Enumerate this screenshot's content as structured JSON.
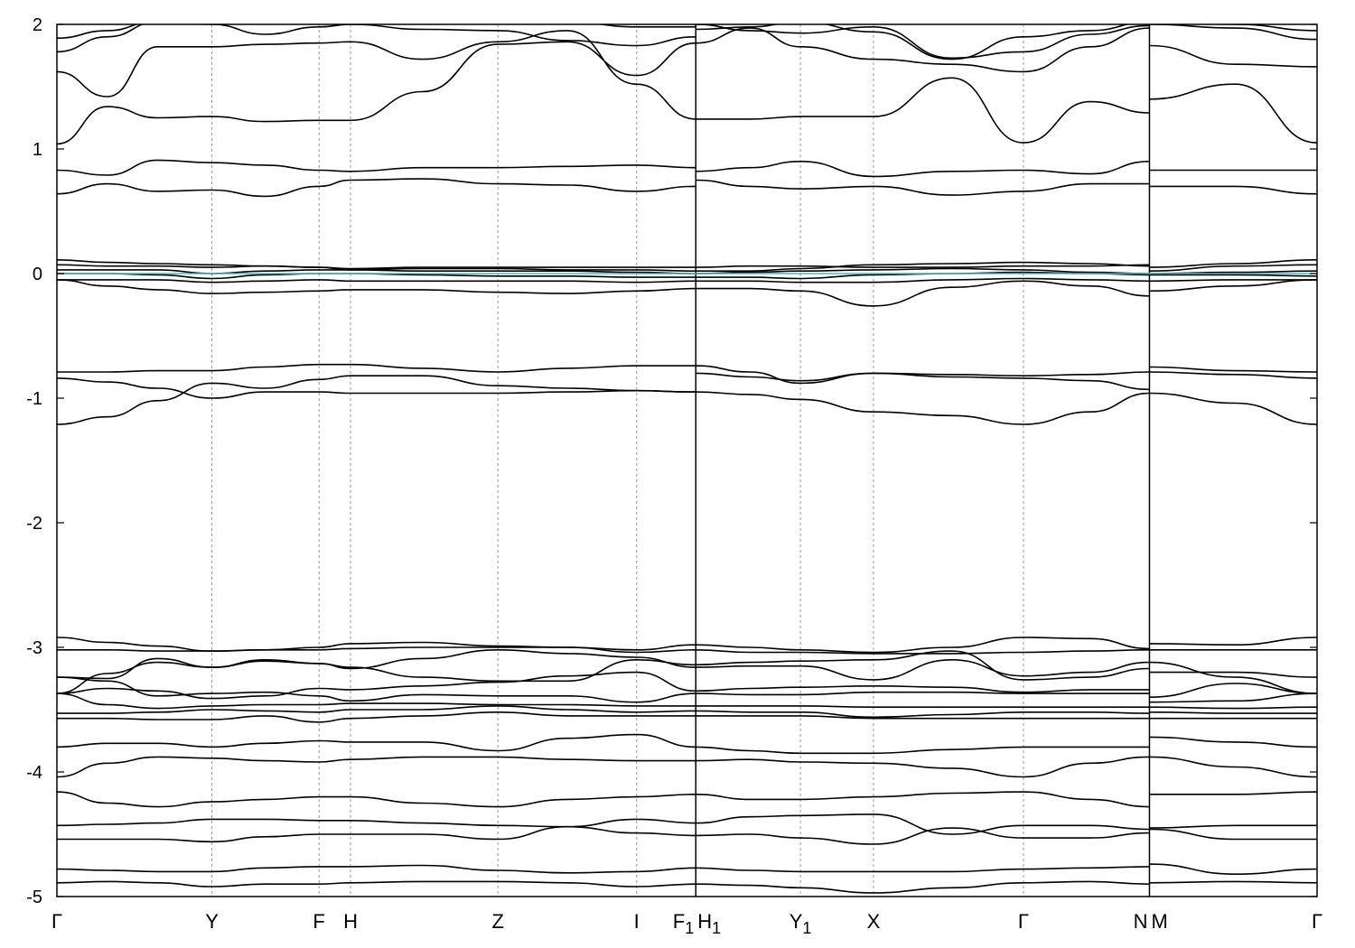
{
  "chart_data": {
    "type": "line",
    "title": "",
    "xlabel": "",
    "ylabel": "",
    "ylim": [
      -5,
      2
    ],
    "yticks": [
      2,
      1,
      0,
      -1,
      -2,
      -3,
      -4,
      -5
    ],
    "xlim": [
      0,
      10
    ],
    "grid": "vertical dashed lines at high-symmetry points",
    "legend": "none",
    "colors": {
      "bands": "#000000",
      "fermi": "#4ab6c6",
      "grid": "#9a9a9a"
    },
    "kpoints": [
      {
        "label": "Γ",
        "sub": "",
        "x": 0.0
      },
      {
        "label": "Y",
        "sub": "",
        "x": 1.23
      },
      {
        "label": "F",
        "sub": "",
        "x": 2.08
      },
      {
        "label": "H",
        "sub": "",
        "x": 2.33
      },
      {
        "label": "Z",
        "sub": "",
        "x": 3.5
      },
      {
        "label": "I",
        "sub": "",
        "x": 4.6
      },
      {
        "label": "F",
        "sub": "1",
        "x": 5.07
      },
      {
        "label": "H",
        "sub": "1",
        "x": 5.07
      },
      {
        "label": "Y",
        "sub": "1",
        "x": 5.9
      },
      {
        "label": "X",
        "sub": "",
        "x": 6.48
      },
      {
        "label": "Γ",
        "sub": "",
        "x": 7.67
      },
      {
        "label": "N",
        "sub": "",
        "x": 8.67
      },
      {
        "label": "M",
        "sub": "",
        "x": 8.67
      },
      {
        "label": "Γ",
        "sub": "",
        "x": 10.0
      }
    ],
    "x": [
      0,
      0.4,
      0.8,
      1.23,
      1.65,
      2.08,
      2.33,
      2.9,
      3.5,
      4.05,
      4.6,
      5.07,
      5.07,
      5.5,
      5.9,
      6.48,
      7.1,
      7.67,
      8.2,
      8.67,
      8.67,
      9.35,
      10.0
    ],
    "series": [
      {
        "values": [
          -4.89,
          -4.88,
          -4.89,
          -4.92,
          -4.9,
          -4.9,
          -4.89,
          -4.88,
          -4.88,
          -4.89,
          -4.92,
          -4.9,
          -4.9,
          -4.91,
          -4.93,
          -4.97,
          -4.93,
          -4.89,
          -4.88,
          -4.9,
          -4.89,
          -4.88,
          -4.89
        ]
      },
      {
        "values": [
          -4.78,
          -4.79,
          -4.8,
          -4.8,
          -4.77,
          -4.76,
          -4.76,
          -4.75,
          -4.79,
          -4.81,
          -4.8,
          -4.77,
          -4.77,
          -4.79,
          -4.8,
          -4.8,
          -4.8,
          -4.78,
          -4.77,
          -4.76,
          -4.74,
          -4.82,
          -4.78
        ]
      },
      {
        "values": [
          -4.54,
          -4.54,
          -4.54,
          -4.56,
          -4.52,
          -4.5,
          -4.5,
          -4.5,
          -4.54,
          -4.44,
          -4.38,
          -4.41,
          -4.41,
          -4.36,
          -4.35,
          -4.34,
          -4.5,
          -4.43,
          -4.43,
          -4.46,
          -4.46,
          -4.54,
          -4.54
        ]
      },
      {
        "values": [
          -4.43,
          -4.42,
          -4.41,
          -4.38,
          -4.38,
          -4.39,
          -4.39,
          -4.41,
          -4.43,
          -4.44,
          -4.49,
          -4.51,
          -4.51,
          -4.5,
          -4.53,
          -4.58,
          -4.45,
          -4.53,
          -4.53,
          -4.49,
          -4.45,
          -4.43,
          -4.43
        ]
      },
      {
        "values": [
          -4.16,
          -4.25,
          -4.28,
          -4.24,
          -4.22,
          -4.2,
          -4.2,
          -4.25,
          -4.28,
          -4.22,
          -4.2,
          -4.18,
          -4.18,
          -4.22,
          -4.22,
          -4.2,
          -4.17,
          -4.16,
          -4.22,
          -4.28,
          -4.18,
          -4.18,
          -4.16
        ]
      },
      {
        "values": [
          -4.04,
          -3.93,
          -3.88,
          -3.89,
          -3.91,
          -3.92,
          -3.9,
          -3.88,
          -3.88,
          -3.9,
          -3.91,
          -3.91,
          -3.91,
          -3.9,
          -3.92,
          -3.93,
          -3.97,
          -4.04,
          -3.93,
          -3.88,
          -3.88,
          -3.96,
          -4.04
        ]
      },
      {
        "values": [
          -3.8,
          -3.77,
          -3.77,
          -3.8,
          -3.77,
          -3.75,
          -3.76,
          -3.76,
          -3.83,
          -3.73,
          -3.7,
          -3.8,
          -3.8,
          -3.83,
          -3.85,
          -3.85,
          -3.82,
          -3.8,
          -3.8,
          -3.8,
          -3.72,
          -3.76,
          -3.8
        ]
      },
      {
        "values": [
          -3.57,
          -3.57,
          -3.58,
          -3.58,
          -3.55,
          -3.6,
          -3.57,
          -3.55,
          -3.52,
          -3.55,
          -3.55,
          -3.55,
          -3.55,
          -3.55,
          -3.55,
          -3.57,
          -3.57,
          -3.57,
          -3.57,
          -3.57,
          -3.57,
          -3.57,
          -3.57
        ]
      },
      {
        "values": [
          -3.53,
          -3.53,
          -3.52,
          -3.5,
          -3.51,
          -3.52,
          -3.5,
          -3.5,
          -3.47,
          -3.5,
          -3.52,
          -3.51,
          -3.51,
          -3.52,
          -3.52,
          -3.56,
          -3.54,
          -3.52,
          -3.52,
          -3.53,
          -3.52,
          -3.53,
          -3.53
        ]
      },
      {
        "values": [
          -3.37,
          -3.46,
          -3.49,
          -3.47,
          -3.46,
          -3.46,
          -3.45,
          -3.45,
          -3.46,
          -3.46,
          -3.47,
          -3.47,
          -3.47,
          -3.47,
          -3.47,
          -3.48,
          -3.48,
          -3.48,
          -3.48,
          -3.48,
          -3.48,
          -3.49,
          -3.48
        ]
      },
      {
        "values": [
          -3.37,
          -3.33,
          -3.35,
          -3.41,
          -3.39,
          -3.33,
          -3.34,
          -3.31,
          -3.28,
          -3.23,
          -3.2,
          -3.35,
          -3.35,
          -3.33,
          -3.32,
          -3.31,
          -3.32,
          -3.36,
          -3.34,
          -3.34,
          -3.4,
          -3.29,
          -3.37
        ]
      },
      {
        "values": [
          -3.24,
          -3.27,
          -3.39,
          -3.37,
          -3.36,
          -3.39,
          -3.43,
          -3.38,
          -3.39,
          -3.39,
          -3.44,
          -3.37,
          -3.37,
          -3.38,
          -3.38,
          -3.36,
          -3.36,
          -3.37,
          -3.37,
          -3.37,
          -3.44,
          -3.43,
          -3.37
        ]
      },
      {
        "values": [
          -3.37,
          -3.21,
          -3.12,
          -3.16,
          -3.1,
          -3.13,
          -3.17,
          -3.09,
          -3.02,
          -3.05,
          -3.08,
          -3.16,
          -3.16,
          -3.15,
          -3.15,
          -3.26,
          -3.1,
          -3.23,
          -3.2,
          -3.12,
          -3.12,
          -3.24,
          -3.37
        ]
      },
      {
        "values": [
          -3.24,
          -3.25,
          -3.09,
          -3.16,
          -3.11,
          -3.13,
          -3.16,
          -3.24,
          -3.27,
          -3.27,
          -3.1,
          -3.14,
          -3.14,
          -3.12,
          -3.11,
          -3.1,
          -3.03,
          -3.26,
          -3.24,
          -3.17,
          -3.2,
          -3.2,
          -3.24
        ]
      },
      {
        "values": [
          -3.02,
          -3.02,
          -3.03,
          -3.03,
          -3.02,
          -3.02,
          -3.01,
          -3.0,
          -3.0,
          -3.0,
          -3.04,
          -3.02,
          -3.02,
          -3.04,
          -3.04,
          -3.05,
          -3.05,
          -3.04,
          -3.03,
          -3.02,
          -3.02,
          -3.02,
          -3.02
        ]
      },
      {
        "values": [
          -2.92,
          -2.96,
          -2.99,
          -3.03,
          -3.02,
          -3.0,
          -2.97,
          -2.96,
          -2.99,
          -3.0,
          -3.02,
          -2.98,
          -2.98,
          -3.0,
          -3.02,
          -3.04,
          -3.0,
          -2.92,
          -2.93,
          -3.01,
          -2.97,
          -2.98,
          -2.92
        ]
      },
      {
        "values": [
          -1.21,
          -1.15,
          -1.02,
          -0.88,
          -0.92,
          -0.85,
          -0.82,
          -0.82,
          -0.9,
          -0.92,
          -0.94,
          -0.95,
          -0.95,
          -0.97,
          -1.01,
          -1.11,
          -1.14,
          -1.21,
          -1.11,
          -0.96,
          -0.96,
          -1.04,
          -1.21
        ]
      },
      {
        "values": [
          -0.84,
          -0.87,
          -0.92,
          -1.0,
          -0.95,
          -0.95,
          -0.96,
          -0.96,
          -0.96,
          -0.95,
          -0.94,
          -0.95,
          -0.8,
          -0.83,
          -0.86,
          -0.8,
          -0.83,
          -0.84,
          -0.86,
          -0.93,
          -0.79,
          -0.81,
          -0.84
        ]
      },
      {
        "values": [
          -0.79,
          -0.79,
          -0.78,
          -0.78,
          -0.75,
          -0.73,
          -0.73,
          -0.76,
          -0.79,
          -0.76,
          -0.74,
          -0.74,
          -0.74,
          -0.79,
          -0.88,
          -0.8,
          -0.81,
          -0.82,
          -0.81,
          -0.79,
          -0.75,
          -0.78,
          -0.79
        ]
      },
      {
        "values": [
          -0.05,
          -0.1,
          -0.13,
          -0.16,
          -0.15,
          -0.14,
          -0.13,
          -0.13,
          -0.15,
          -0.16,
          -0.14,
          -0.12,
          -0.12,
          -0.12,
          -0.14,
          -0.26,
          -0.11,
          -0.06,
          -0.1,
          -0.18,
          -0.14,
          -0.1,
          -0.05
        ]
      },
      {
        "values": [
          -0.05,
          -0.05,
          -0.05,
          -0.07,
          -0.06,
          -0.05,
          -0.06,
          -0.06,
          -0.06,
          -0.06,
          -0.07,
          -0.06,
          -0.06,
          -0.06,
          -0.07,
          -0.07,
          -0.05,
          -0.04,
          -0.05,
          -0.06,
          -0.06,
          -0.05,
          -0.05
        ]
      },
      {
        "values": [
          0.0,
          0.0,
          -0.01,
          -0.04,
          -0.01,
          0.0,
          0.0,
          -0.01,
          -0.02,
          -0.02,
          -0.03,
          -0.03,
          -0.03,
          -0.03,
          -0.04,
          -0.01,
          0.0,
          0.01,
          0.0,
          -0.01,
          -0.01,
          -0.01,
          -0.02
        ]
      },
      {
        "values": [
          0.03,
          0.03,
          0.03,
          0.0,
          0.02,
          0.03,
          0.03,
          0.02,
          0.02,
          0.02,
          0.01,
          0.0,
          0.0,
          0.01,
          0.02,
          0.03,
          0.04,
          0.03,
          0.01,
          0.0,
          0.0,
          0.01,
          0.02
        ]
      },
      {
        "values": [
          0.07,
          0.06,
          0.06,
          0.05,
          0.06,
          0.05,
          0.04,
          0.05,
          0.05,
          0.05,
          0.05,
          0.05,
          0.05,
          0.06,
          0.06,
          0.05,
          0.05,
          0.06,
          0.06,
          0.07,
          0.02,
          0.06,
          0.07
        ]
      },
      {
        "values": [
          0.11,
          0.09,
          0.08,
          0.07,
          0.06,
          0.05,
          0.03,
          0.04,
          0.04,
          0.03,
          0.03,
          0.02,
          0.02,
          0.02,
          0.04,
          0.07,
          0.08,
          0.09,
          0.08,
          0.06,
          0.05,
          0.08,
          0.11
        ]
      },
      {
        "values": [
          0.64,
          0.72,
          0.66,
          0.67,
          0.62,
          0.7,
          0.75,
          0.76,
          0.72,
          0.71,
          0.66,
          0.7,
          0.75,
          0.7,
          0.68,
          0.7,
          0.63,
          0.66,
          0.72,
          0.72,
          0.7,
          0.7,
          0.64
        ]
      },
      {
        "values": [
          0.83,
          0.79,
          0.91,
          0.89,
          0.87,
          0.83,
          0.82,
          0.85,
          0.85,
          0.86,
          0.87,
          0.85,
          0.82,
          0.85,
          0.9,
          0.78,
          0.82,
          0.83,
          0.8,
          0.9,
          0.83,
          0.83,
          0.83
        ]
      },
      {
        "values": [
          1.04,
          1.34,
          1.25,
          1.26,
          1.22,
          1.23,
          1.23,
          1.46,
          1.84,
          1.86,
          1.59,
          1.85,
          1.85,
          1.97,
          1.82,
          1.72,
          1.68,
          1.62,
          1.82,
          1.97,
          1.83,
          1.68,
          1.66
        ]
      },
      {
        "values": [
          1.62,
          1.42,
          1.82,
          1.82,
          1.84,
          1.85,
          1.86,
          1.72,
          1.86,
          1.95,
          1.52,
          1.24,
          1.24,
          1.24,
          1.26,
          1.26,
          1.57,
          1.05,
          1.38,
          1.29,
          1.4,
          1.52,
          1.05
        ]
      },
      {
        "values": [
          1.78,
          1.9,
          2.02,
          2.0,
          1.92,
          1.98,
          2.0,
          1.96,
          1.95,
          1.87,
          1.83,
          1.9,
          2.0,
          1.95,
          1.93,
          1.98,
          1.73,
          1.78,
          1.92,
          1.99,
          2.0,
          1.97,
          1.88
        ]
      },
      {
        "values": [
          1.89,
          1.95,
          2.03,
          2.03,
          2.02,
          2.02,
          2.01,
          2.02,
          2.02,
          2.02,
          1.98,
          1.98,
          1.96,
          1.98,
          2.02,
          1.94,
          1.72,
          1.9,
          1.95,
          2.02,
          2.02,
          2.0,
          1.95
        ]
      }
    ],
    "fermi_level": 0.0
  }
}
